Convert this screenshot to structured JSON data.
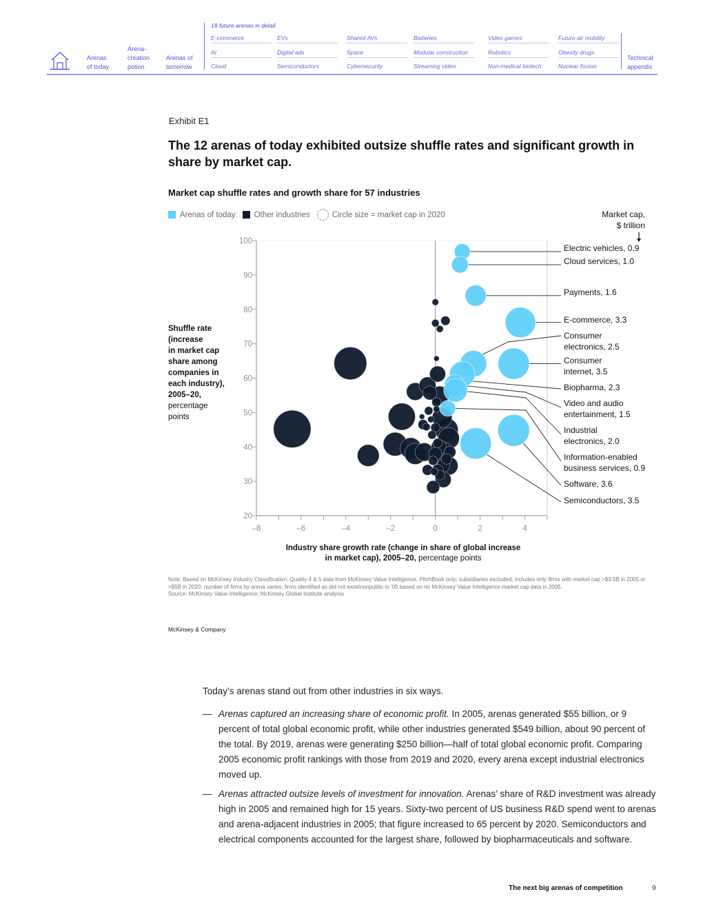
{
  "nav": {
    "home_icon": "home-icon",
    "sections": [
      {
        "label_lines": [
          "Arenas",
          "of today"
        ]
      },
      {
        "label_lines": [
          "Arena-",
          "creation",
          "potion"
        ]
      },
      {
        "label_lines": [
          "Arenas of",
          "tomorrow"
        ]
      }
    ],
    "future_header": "18 future arenas in detail",
    "future_arenas": [
      [
        "E-commerce",
        "AI",
        "Cloud"
      ],
      [
        "EVs",
        "Digital ads",
        "Semiconductors"
      ],
      [
        "Shared AVs",
        "Space",
        "Cybersecurity"
      ],
      [
        "Batteries",
        "Modular construction",
        "Streaming video"
      ],
      [
        "Video games",
        "Robotics",
        "Non-medical biotech"
      ],
      [
        "Future air mobility",
        "Obesity drugs",
        "Nuclear fission"
      ]
    ],
    "appendix_lines": [
      "Technical",
      "appendix"
    ],
    "accent_color": "#4a5bd8"
  },
  "exhibit": {
    "label": "Exhibit E1",
    "title": "The 12 arenas of today exhibited outsize shuffle rates and significant growth in share by market cap.",
    "subtitle": "Market cap shuffle rates and growth share for 57 industries",
    "legend": {
      "arenas": "Arenas of today",
      "other": "Other industries",
      "size": "Circle size = market cap in 2020"
    },
    "market_cap_header_lines": [
      "Market cap,",
      "$ trillion"
    ],
    "ylabel_bold_lines": [
      "Shuffle rate",
      "(increase",
      "in market cap",
      "share among",
      "companies in",
      "each industry),",
      "2005–20,"
    ],
    "ylabel_regular_lines": [
      "percentage",
      "points"
    ],
    "xlabel_bold_line1": "Industry share growth rate (change in share of global increase",
    "xlabel_bold_line2": "in market cap), 2005–20,",
    "xlabel_regular": " percentage points",
    "note": "Note: Based on McKinsey Industry Classification; Quality 4 & 5 data from McKinsey Value Intelligence, PitchBook only; subsidiaries excluded; includes only firms with market cap >$3.5B in 2005 or >$5B in 2020; number of firms by arena varies; firms identified as did not exist/nonpublic in ’05 based on no McKinsey Value Intelligence market cap data in 2005.",
    "source": "Source: McKinsey Value Intelligence; McKinsey Global Institute analysis",
    "brand": "McKinsey & Company"
  },
  "chart_data": {
    "type": "scatter",
    "subtype": "bubble",
    "title": "Market cap shuffle rates and growth share for 57 industries",
    "xlabel": "Industry share growth rate (change in share of global increase in market cap), 2005–20, percentage points",
    "ylabel": "Shuffle rate (increase in market cap share among companies in each industry), 2005–20, percentage points",
    "xlim": [
      -8,
      5
    ],
    "ylim": [
      20,
      100
    ],
    "xticks": [
      -8,
      -6,
      -4,
      -2,
      0,
      2,
      4
    ],
    "xtick_labels": [
      "–8",
      "–6",
      "–4",
      "–2",
      "0",
      "2",
      "4"
    ],
    "yticks": [
      20,
      30,
      40,
      50,
      60,
      70,
      80,
      90,
      100
    ],
    "ytick_labels": [
      "20",
      "30",
      "40",
      "50",
      "60",
      "70",
      "80",
      "90",
      "100"
    ],
    "size_legend": "Circle size = market cap in 2020, $ trillion",
    "colors": {
      "arenas": "#5ccffa",
      "other": "#0f1b2d",
      "axis": "#9aa3a8",
      "tick_text": "#8a9196",
      "leader": "#222222"
    },
    "arenas": [
      {
        "name": "Electric vehicles",
        "label_lines": [
          "Electric vehicles, 0.9"
        ],
        "x": 1.2,
        "y": 96.8,
        "cap": 0.9
      },
      {
        "name": "Cloud services",
        "label_lines": [
          "Cloud services, 1.0"
        ],
        "x": 1.1,
        "y": 93.0,
        "cap": 1.0
      },
      {
        "name": "Payments",
        "label_lines": [
          "Payments, 1.6"
        ],
        "x": 1.8,
        "y": 84.0,
        "cap": 1.6
      },
      {
        "name": "E-commerce",
        "label_lines": [
          "E-commerce, 3.3"
        ],
        "x": 3.8,
        "y": 76.2,
        "cap": 3.3
      },
      {
        "name": "Consumer electronics",
        "label_lines": [
          "Consumer",
          "electronics, 2.5"
        ],
        "x": 1.7,
        "y": 64.2,
        "cap": 2.5
      },
      {
        "name": "Consumer internet",
        "label_lines": [
          "Consumer",
          "internet, 3.5"
        ],
        "x": 3.5,
        "y": 64.2,
        "cap": 3.5
      },
      {
        "name": "Biopharma",
        "label_lines": [
          "Biopharma, 2.3"
        ],
        "x": 1.2,
        "y": 61.2,
        "cap": 2.3
      },
      {
        "name": "Video and audio entertainment",
        "label_lines": [
          "Video and audio",
          "entertainment, 1.5"
        ],
        "x": 0.85,
        "y": 58.0,
        "cap": 1.5
      },
      {
        "name": "Industrial electronics",
        "label_lines": [
          "Industrial",
          "electronics, 2.0"
        ],
        "x": 0.9,
        "y": 56.5,
        "cap": 2.0
      },
      {
        "name": "Information-enabled business services",
        "label_lines": [
          "Information-enabled",
          "business services, 0.9"
        ],
        "x": 0.55,
        "y": 51.2,
        "cap": 0.9
      },
      {
        "name": "Software",
        "label_lines": [
          "Software, 3.6"
        ],
        "x": 3.5,
        "y": 44.8,
        "cap": 3.6
      },
      {
        "name": "Semiconductors",
        "label_lines": [
          "Semiconductors, 3.5"
        ],
        "x": 1.8,
        "y": 41.0,
        "cap": 3.5
      }
    ],
    "other_industries": [
      {
        "x": -6.4,
        "y": 45.2,
        "cap": 5.0
      },
      {
        "x": -3.8,
        "y": 64.3,
        "cap": 3.8
      },
      {
        "x": -1.5,
        "y": 48.8,
        "cap": 2.6
      },
      {
        "x": -3.0,
        "y": 37.5,
        "cap": 1.7
      },
      {
        "x": -1.8,
        "y": 40.8,
        "cap": 2.0
      },
      {
        "x": -1.1,
        "y": 39.6,
        "cap": 1.6
      },
      {
        "x": -0.9,
        "y": 38.0,
        "cap": 1.6
      },
      {
        "x": -0.5,
        "y": 38.5,
        "cap": 1.2
      },
      {
        "x": -0.9,
        "y": 56.1,
        "cap": 1.1
      },
      {
        "x": -0.35,
        "y": 57.9,
        "cap": 1.0
      },
      {
        "x": -0.25,
        "y": 55.7,
        "cap": 0.7
      },
      {
        "x": 0.2,
        "y": 55.0,
        "cap": 1.2
      },
      {
        "x": 0.1,
        "y": 61.2,
        "cap": 0.9
      },
      {
        "x": 0.0,
        "y": 82.1,
        "cap": 0.15
      },
      {
        "x": 0.0,
        "y": 76.0,
        "cap": 0.2
      },
      {
        "x": 0.45,
        "y": 76.7,
        "cap": 0.3
      },
      {
        "x": 0.2,
        "y": 74.3,
        "cap": 0.17
      },
      {
        "x": 0.05,
        "y": 65.7,
        "cap": 0.1
      },
      {
        "x": 0.05,
        "y": 53.0,
        "cap": 0.3
      },
      {
        "x": -0.3,
        "y": 50.5,
        "cap": 0.25
      },
      {
        "x": 0.05,
        "y": 51.0,
        "cap": 0.15
      },
      {
        "x": 0.3,
        "y": 48.5,
        "cap": 1.4
      },
      {
        "x": -0.2,
        "y": 48.0,
        "cap": 0.15
      },
      {
        "x": -0.55,
        "y": 46.5,
        "cap": 0.35
      },
      {
        "x": 0.0,
        "y": 45.6,
        "cap": 0.3
      },
      {
        "x": 0.5,
        "y": 45.0,
        "cap": 1.9
      },
      {
        "x": 0.6,
        "y": 42.5,
        "cap": 1.6
      },
      {
        "x": 0.1,
        "y": 41.1,
        "cap": 0.3
      },
      {
        "x": 0.3,
        "y": 38.5,
        "cap": 1.5
      },
      {
        "x": 0.0,
        "y": 38.0,
        "cap": 0.6
      },
      {
        "x": 0.6,
        "y": 34.5,
        "cap": 1.2
      },
      {
        "x": 0.35,
        "y": 34.5,
        "cap": 0.6
      },
      {
        "x": -0.35,
        "y": 33.3,
        "cap": 0.4
      },
      {
        "x": 0.1,
        "y": 33.2,
        "cap": 0.5
      },
      {
        "x": -0.05,
        "y": 32.8,
        "cap": 0.2
      },
      {
        "x": 0.35,
        "y": 30.5,
        "cap": 0.9
      },
      {
        "x": -0.1,
        "y": 28.3,
        "cap": 0.6
      },
      {
        "x": 0.5,
        "y": 36.5,
        "cap": 0.4
      },
      {
        "x": -0.15,
        "y": 43.5,
        "cap": 0.25
      },
      {
        "x": -0.4,
        "y": 45.8,
        "cap": 0.2
      },
      {
        "x": -0.6,
        "y": 48.8,
        "cap": 0.1
      },
      {
        "x": 0.15,
        "y": 40.0,
        "cap": 0.8
      },
      {
        "x": -0.1,
        "y": 36.0,
        "cap": 0.3
      },
      {
        "x": 0.2,
        "y": 31.8,
        "cap": 0.35
      },
      {
        "x": 0.65,
        "y": 38.5,
        "cap": 0.5
      }
    ]
  },
  "body": {
    "intro": "Today’s arenas stand out from other industries in six ways.",
    "dash": "—",
    "bullets": [
      {
        "lead": "Arenas captured an increasing share of economic profit.",
        "text": " In 2005, arenas generated $55 billion, or 9 percent of total global economic profit, while other industries generated $549 billion, about 90 percent of the total. By 2019, arenas were generating $250 billion—half of total global economic profit. Comparing 2005 economic profit rankings with those from 2019 and 2020, every arena except industrial electronics moved up."
      },
      {
        "lead": "Arenas attracted outsize levels of investment for innovation.",
        "text": " Arenas’ share of R&D investment was already high in 2005 and remained high for 15 years. Sixty-two percent of US business R&D spend went to arenas and arena-adjacent industries in 2005; that figure increased to 65 percent by 2020. Semiconductors and electrical components accounted for the largest share, followed by biopharmaceuticals and software."
      }
    ]
  },
  "footer": {
    "title": "The next big arenas of competition",
    "page": "9"
  }
}
